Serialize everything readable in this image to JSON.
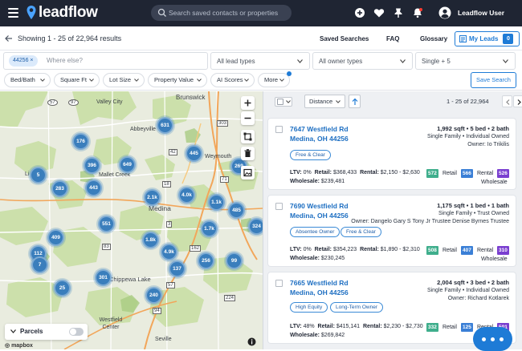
{
  "app": {
    "name": "leadflow"
  },
  "search": {
    "placeholder": "Search saved contacts or properties"
  },
  "user": {
    "name": "Leadflow User"
  },
  "results": {
    "summary": "Showing 1 - 25 of 22,964 results"
  },
  "nav": {
    "saved_searches": "Saved Searches",
    "faq": "FAQ",
    "glossary": "Glossary",
    "my_leads": "My Leads",
    "my_leads_count": "0"
  },
  "filters": {
    "chip": "44256",
    "location_placeholder": "Where else?",
    "lead_types": "All lead types",
    "owner_types": "All owner types",
    "property_types": "Single + 5",
    "pills": [
      "Bed/Bath",
      "Square Ft",
      "Lot Size",
      "Property Value",
      "AI Scores",
      "More"
    ],
    "save_search": "Save Search"
  },
  "map": {
    "towns": [
      "Brunswick",
      "Valley City",
      "Abbeyville",
      "Mallet Creek",
      "Weymouth",
      "Medina",
      "Chippewa Lake",
      "Westfield Center",
      "Seville",
      "Li"
    ],
    "routes": [
      "57",
      "97",
      "303",
      "42",
      "18",
      "71",
      "3",
      "162",
      "83",
      "94",
      "57",
      "224"
    ],
    "clusters": [
      "631",
      "176",
      "445",
      "396",
      "649",
      "269",
      "5",
      "283",
      "443",
      "2.1k",
      "4.0k",
      "1.1k",
      "485",
      "324",
      "551",
      "1.8k",
      "1.7k",
      "409",
      "4.9k",
      "112",
      "7",
      "256",
      "99",
      "137",
      "301",
      "25",
      "240"
    ],
    "parcels_label": "Parcels",
    "attribution": "mapbox"
  },
  "list": {
    "sort": "Distance",
    "range": "1 - 25 of 22,964",
    "cards": [
      {
        "street": "7647 Westfield Rd",
        "city": "Medina, OH 44256",
        "specs": "1,992 sqft • 5 bed • 2 bath",
        "type": "Single Family • Individual Owned",
        "owner": "Owner: Io Trikilis",
        "tags": [
          "Free & Clear"
        ],
        "ltv": "0%",
        "retail": "$368,433",
        "rental": "$2,150 - $2,630",
        "wholesale": "$239,481",
        "scores": {
          "retail": "572",
          "rental": "566",
          "wholesale": "526"
        }
      },
      {
        "street": "7690 Westfield Rd",
        "city": "Medina, OH 44256",
        "specs": "1,175 sqft • 1 bed • 1 bath",
        "type": "Single Family • Trust Owned",
        "owner": "Owner: Dangelo Gary S Tony Jr Trustee Denise Byrnes Trustee",
        "tags": [
          "Absentee Owner",
          "Free & Clear"
        ],
        "ltv": "0%",
        "retail": "$354,223",
        "rental": "$1,890 - $2,310",
        "wholesale": "$230,245",
        "scores": {
          "retail": "508",
          "rental": "407",
          "wholesale": "310"
        }
      },
      {
        "street": "7665 Westfield Rd",
        "city": "Medina, OH 44256",
        "specs": "2,004 sqft • 3 bed • 2 bath",
        "type": "Single Family • Individual Owned",
        "owner": "Owner: Richard Kotlarek",
        "tags": [
          "High Equity",
          "Long-Term Owner"
        ],
        "ltv": "48%",
        "retail": "$415,141",
        "rental": "$2,230 - $2,730",
        "wholesale": "$269,842",
        "scores": {
          "retail": "332",
          "rental": "125",
          "wholesale": "501"
        }
      }
    ],
    "labels": {
      "ltv": "LTV:",
      "retail": "Retail:",
      "rental": "Rental:",
      "wholesale": "Wholesale:",
      "retail_score": "Retail",
      "rental_score": "Rental",
      "wholesale_score": "Wholesale"
    }
  },
  "colors": {
    "topbar": "#1f2533",
    "accent": "#1e7bd6",
    "retail_badge": "#3fae8c",
    "rental_badge": "#3a7fd6",
    "wholesale_badge": "#7a3fd0"
  }
}
